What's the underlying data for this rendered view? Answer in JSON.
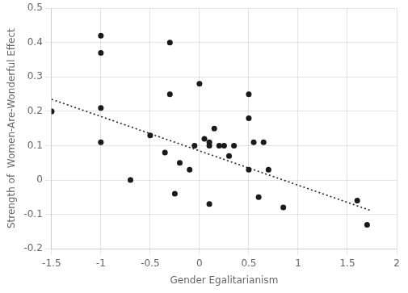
{
  "chart_data": {
    "type": "scatter",
    "xlabel": "Gender Egalitarianism",
    "ylabel": "Strength of  Women-Are-Wonderful Effect",
    "series": [
      {
        "type": "scatter",
        "marker": "circle",
        "color": "#1a1a1a",
        "x": [
          -1.5,
          -1.5,
          -1.0,
          -1.0,
          -1.0,
          -1.0,
          -0.7,
          -0.5,
          -0.35,
          -0.3,
          -0.3,
          -0.25,
          -0.2,
          -0.1,
          -0.05,
          0.0,
          0.05,
          0.1,
          0.1,
          0.1,
          0.15,
          0.2,
          0.25,
          0.3,
          0.35,
          0.5,
          0.5,
          0.5,
          0.55,
          0.6,
          0.65,
          0.7,
          0.85,
          1.6,
          1.7
        ],
        "values": [
          0.2,
          0.2,
          0.37,
          0.42,
          0.11,
          0.21,
          0.0,
          0.13,
          0.08,
          0.4,
          0.25,
          -0.04,
          0.05,
          0.03,
          0.1,
          0.28,
          0.12,
          0.11,
          0.1,
          -0.07,
          0.15,
          0.1,
          0.1,
          0.07,
          0.1,
          0.18,
          0.25,
          0.03,
          0.11,
          -0.05,
          0.11,
          0.03,
          -0.08,
          -0.06,
          -0.13
        ]
      },
      {
        "type": "line",
        "line_style": "dotted",
        "color": "#222222",
        "x": [
          -1.5,
          1.75
        ],
        "values": [
          0.235,
          -0.09
        ]
      }
    ],
    "xlim": [
      -1.5,
      2.0
    ],
    "ylim": [
      -0.2,
      0.5
    ],
    "xticks": [
      -1.5,
      -1.0,
      -0.5,
      0.0,
      0.5,
      1.0,
      1.5,
      2.0
    ],
    "yticks": [
      -0.2,
      -0.1,
      0.0,
      0.1,
      0.2,
      0.3,
      0.4,
      0.5
    ],
    "grid": true
  }
}
